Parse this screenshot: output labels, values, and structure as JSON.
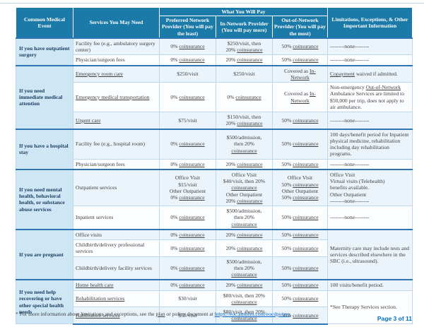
{
  "colors": {
    "header_bg": "#1B7AA7",
    "event_column_bg": "#CFE6F4",
    "group_divider": "#2E75B5",
    "cell_border": "#BDD7EE",
    "row_shade": "#EBF4FA",
    "event_text": "#1A3E63",
    "body_text": "#3F3F3F",
    "url_link": "#0563C1",
    "page_number_blue": "#0070C0"
  },
  "table": {
    "header": {
      "event": "Common Medical Event",
      "services": "Services You May Need",
      "pay_group": "What You Will Pay",
      "preferred": "Preferred Network Provider (You will pay the least)",
      "in_network": "In-Network Provider (You will pay more)",
      "out_of_network": "Out-of-Network Provider (You will pay the most)",
      "limitations": "Limitations, Exceptions, & Other Important Information"
    },
    "groups": [
      {
        "event": "If you have outpatient surgery",
        "rows": [
          {
            "service": "Facility fee (e.g., ambulatory surgery center)",
            "preferred": "0% {u}coinsurance{/u}",
            "in_network": "$250/visit, then\n20% {u}coinsurance{/u}",
            "out_of_network": "50% {u}coinsurance{/u}",
            "limitations": "--------none--------"
          },
          {
            "service": "Physician/surgeon fees",
            "preferred": "0% {u}coinsurance{/u}",
            "in_network": "20% {u}coinsurance{/u}",
            "out_of_network": "50% {u}coinsurance{/u}",
            "limitations": "--------none--------"
          }
        ]
      },
      {
        "event": "If you need immediate medical attention",
        "rows": [
          {
            "service": "{u}Emergency room care{/u}",
            "preferred": "$250/visit",
            "in_network": "$250/visit",
            "out_of_network": "Covered as {u}In-Network{/u}",
            "limitations": "{u}Copayment{/u} waived if admitted."
          },
          {
            "service": "{u}Emergency medical transportation{/u}",
            "preferred": "0% {u}coinsurance{/u}",
            "in_network": "0% {u}coinsurance{/u}",
            "out_of_network": "Covered as {u}In-Network{/u}",
            "limitations": "Non-emergency {u}Out-of-Network{/u} Ambulance Services are limited to $50,000 per trip, does not apply to air ambulance."
          },
          {
            "service": "{u}Urgent care{/u}",
            "preferred": "$75/visit",
            "in_network": "$150/visit, then\n20% {u}coinsurance{/u}",
            "out_of_network": "50% {u}coinsurance{/u}",
            "limitations": "--------none--------"
          }
        ]
      },
      {
        "event": "If you have a hospital stay",
        "rows": [
          {
            "service": "Facility fee (e.g., hospital room)",
            "preferred": "0% {u}coinsurance{/u}",
            "in_network": "$500/admission,\nthen 20%\n{u}coinsurance{/u}",
            "out_of_network": "50% {u}coinsurance{/u}",
            "limitations": "100 days/benefit period for Inpatient physical medicine, rehabilitation including day rehabilitation programs."
          },
          {
            "service": "Physician/surgeon fees",
            "preferred": "0% {u}coinsurance{/u}",
            "in_network": "20% {u}coinsurance{/u}",
            "out_of_network": "50% {u}coinsurance{/u}",
            "limitations": "--------none--------"
          }
        ]
      },
      {
        "event": "If you need mental health, behavioral health, or substance abuse services",
        "rows": [
          {
            "service": "Outpatient services",
            "preferred": "Office Visit\n$15/visit\nOther Outpatient\n0% {u}coinsurance{/u}",
            "in_network": "Office Visit\n$40/visit, then 20%\n{u}coinsurance{/u}\nOther Outpatient\n20% {u}coinsurance{/u}",
            "out_of_network": "Office Visit\n50% {u}coinsurance{/u}\nOther Outpatient\n50% {u}coinsurance{/u}",
            "limitations": "Office Visit\nVirtual visits (Telehealth)\nbenefits available.\nOther Outpatient\n--------none--------"
          },
          {
            "service": "Inpatient services",
            "preferred": "0% {u}coinsurance{/u}",
            "in_network": "$500/admission,\nthen 20%\n{u}coinsurance{/u}",
            "out_of_network": "50% {u}coinsurance{/u}",
            "limitations": "--------none--------"
          }
        ]
      },
      {
        "event": "If you are pregnant",
        "rows": [
          {
            "service": "Office visits",
            "preferred": "0% {u}coinsurance{/u}",
            "in_network": "20% {u}coinsurance{/u}",
            "out_of_network": "50% {u}coinsurance{/u}",
            "limitations": "Maternity care may include tests and services described elsewhere in the SBC (i.e., ultrasound).",
            "lim_rowspan": 3
          },
          {
            "service": "Childbirth/delivery professional services",
            "preferred": "0% {u}coinsurance{/u}",
            "in_network": "20% {u}coinsurance{/u}",
            "out_of_network": "50% {u}coinsurance{/u}"
          },
          {
            "service": "Childbirth/delivery facility services",
            "preferred": "0% {u}coinsurance{/u}",
            "in_network": "$500/admission,\nthen 20%\n{u}coinsurance{/u}",
            "out_of_network": "50% {u}coinsurance{/u}"
          }
        ]
      },
      {
        "event": "If you need help recovering or have other special health needs",
        "rows": [
          {
            "service": "{u}Home health care{/u}",
            "preferred": "0% {u}coinsurance{/u}",
            "in_network": "20% {u}coinsurance{/u}",
            "out_of_network": "50% {u}coinsurance{/u}",
            "limitations": "100 visits/benefit period."
          },
          {
            "service": "{u}Rehabilitation services{/u}",
            "preferred": "$30/visit",
            "in_network": "$80/visit, then 20%\n{u}coinsurance{/u}",
            "out_of_network": "50% {u}coinsurance{/u}",
            "limitations": "*See Therapy Services section.",
            "lim_rowspan": 2
          },
          {
            "service": "{u}Habilitation services{/u}",
            "preferred": "$30/visit",
            "in_network": "$80/visit, then 20%\n{u}coinsurance{/u}",
            "out_of_network": "50% {u}coinsurance{/u}"
          }
        ]
      }
    ]
  },
  "footnote": {
    "segments": [
      {
        "t": "* For more information about limitations and exceptions, see the "
      },
      {
        "t": "plan",
        "u": true
      },
      {
        "t": " or policy document at "
      },
      {
        "t": "https://eoc.anthem.com/eocdps/aso",
        "link": true
      },
      {
        "t": "."
      }
    ]
  },
  "page_indicator": "Page 3 of 11"
}
